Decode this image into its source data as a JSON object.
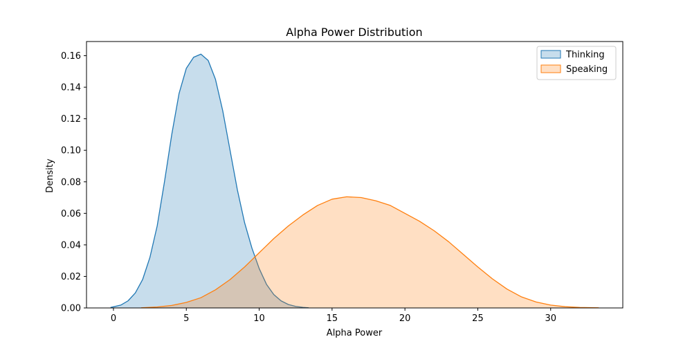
{
  "chart_data": {
    "type": "area",
    "title": "Alpha Power Distribution",
    "xlabel": "Alpha Power",
    "ylabel": "Density",
    "xlim": [
      -1.85,
      34.95
    ],
    "ylim": [
      0,
      0.169
    ],
    "xticks": [
      0,
      5,
      10,
      15,
      20,
      25,
      30
    ],
    "yticks": [
      0.0,
      0.02,
      0.04,
      0.06,
      0.08,
      0.1,
      0.12,
      0.14,
      0.16
    ],
    "grid": false,
    "legend_position": "top-right",
    "series": [
      {
        "name": "Thinking",
        "line_color": "#1f77b4",
        "fill_color": "#1f77b4",
        "fill_opacity": 0.25,
        "x": [
          -0.2,
          0.5,
          1.0,
          1.5,
          2.0,
          2.5,
          3.0,
          3.5,
          4.0,
          4.5,
          5.0,
          5.5,
          6.0,
          6.5,
          7.0,
          7.5,
          8.0,
          8.5,
          9.0,
          9.5,
          10.0,
          10.5,
          11.0,
          11.5,
          12.0,
          12.5,
          13.0,
          13.4
        ],
        "y": [
          0.0003,
          0.0018,
          0.0045,
          0.0095,
          0.018,
          0.032,
          0.052,
          0.08,
          0.11,
          0.136,
          0.152,
          0.159,
          0.161,
          0.157,
          0.145,
          0.125,
          0.1,
          0.075,
          0.054,
          0.038,
          0.025,
          0.015,
          0.0085,
          0.0045,
          0.0022,
          0.001,
          0.0004,
          0.0001
        ]
      },
      {
        "name": "Speaking",
        "line_color": "#ff7f0e",
        "fill_color": "#ff7f0e",
        "fill_opacity": 0.25,
        "x": [
          1.9,
          3.0,
          4.0,
          5.0,
          6.0,
          7.0,
          8.0,
          9.0,
          10.0,
          11.0,
          12.0,
          13.0,
          14.0,
          15.0,
          16.0,
          17.0,
          18.0,
          19.0,
          20.0,
          21.0,
          22.0,
          23.0,
          24.0,
          25.0,
          26.0,
          27.0,
          28.0,
          29.0,
          30.0,
          31.0,
          32.0,
          33.3
        ],
        "y": [
          0.0001,
          0.0006,
          0.0016,
          0.0035,
          0.0065,
          0.0115,
          0.018,
          0.026,
          0.035,
          0.044,
          0.052,
          0.059,
          0.065,
          0.069,
          0.0705,
          0.07,
          0.068,
          0.065,
          0.06,
          0.055,
          0.049,
          0.042,
          0.034,
          0.026,
          0.0185,
          0.012,
          0.007,
          0.0038,
          0.0018,
          0.0008,
          0.0003,
          0.0001
        ]
      }
    ]
  }
}
